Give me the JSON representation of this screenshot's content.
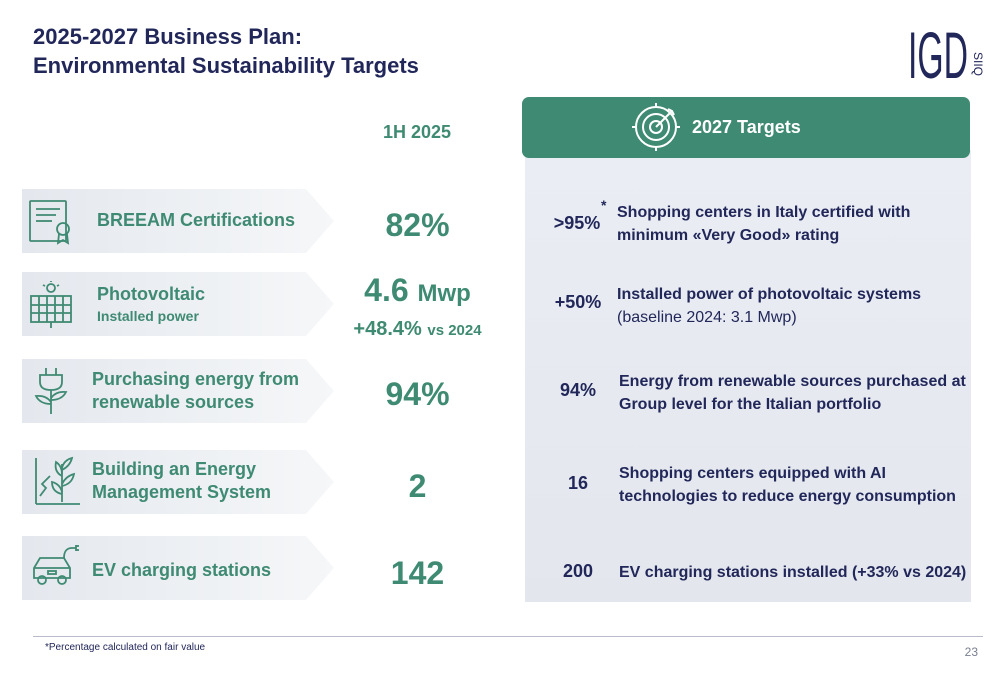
{
  "title": {
    "line1": "2025-2027 Business Plan:",
    "line2": "Environmental Sustainability Targets"
  },
  "logo": {
    "main": "IGD",
    "side": "SIIQ"
  },
  "column_header": "1H 2025",
  "rows": [
    {
      "icon": "certificate-icon",
      "label": "BREEAM Certifications",
      "value": "82%"
    },
    {
      "icon": "solar-panel-icon",
      "label": "Photovoltaic",
      "sublabel": "Installed power",
      "value": "4.6",
      "unit": "Mwp",
      "delta": "+48.4%",
      "delta_note": "vs 2024"
    },
    {
      "icon": "plug-plant-icon",
      "label_line1": "Purchasing energy from",
      "label_line2": "renewable sources",
      "value": "94%"
    },
    {
      "icon": "energy-plant-icon",
      "label_line1": "Building an Energy",
      "label_line2": "Management System",
      "value": "2"
    },
    {
      "icon": "ev-car-icon",
      "label": "EV charging stations",
      "value": "142"
    }
  ],
  "targets": {
    "header": "2027 Targets",
    "items": [
      {
        "value": ">95%",
        "asterisk": "*",
        "line1": "Shopping centers in Italy certified with",
        "line2": "minimum «Very Good» rating"
      },
      {
        "value": "+50%",
        "line1": "Installed power of photovoltaic systems",
        "line2": "(baseline 2024: 3.1 Mwp)"
      },
      {
        "value": "94%",
        "line1": "Energy from renewable sources purchased at",
        "line2": "Group level for the Italian portfolio"
      },
      {
        "value": "16",
        "line1": "Shopping centers equipped with AI",
        "line2": "technologies to reduce energy consumption"
      },
      {
        "value": "200",
        "line1": "EV charging stations installed (+33% vs 2024)"
      }
    ]
  },
  "footnote": "*Percentage calculated on fair value",
  "page_number": "23",
  "colors": {
    "navy": "#22275a",
    "green": "#3f8a72",
    "panel": "#e6eaf0"
  }
}
